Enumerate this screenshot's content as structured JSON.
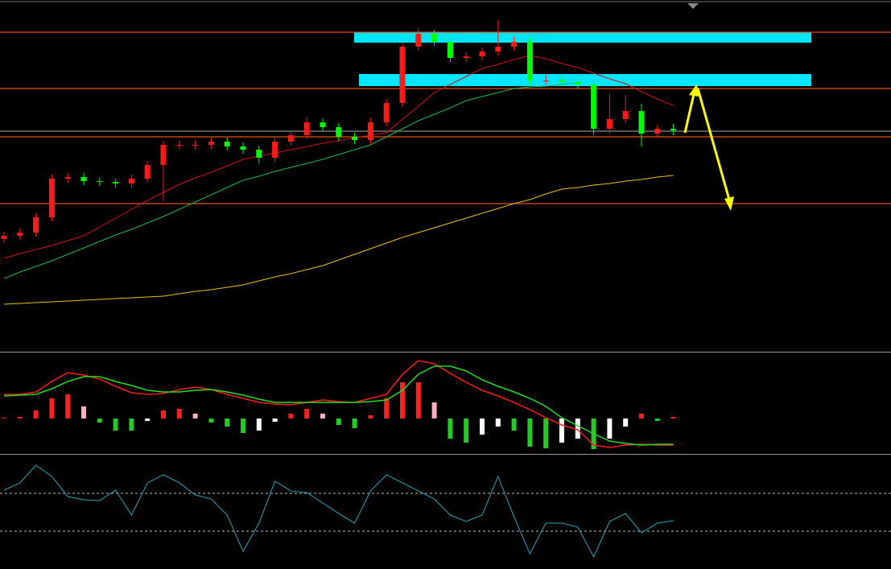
{
  "chart_data": [
    {
      "type": "candlestick",
      "ylim": [
        100,
        143.7
      ],
      "up_color": "#ff1a1a",
      "down_color": "#00ff00",
      "open": [
        114.0,
        114.4,
        114.8,
        116.7,
        121.5,
        121.7,
        121.2,
        121.1,
        120.9,
        121.5,
        123.2,
        125.7,
        125.7,
        125.7,
        126.1,
        125.5,
        125.1,
        124.1,
        126.1,
        126.9,
        128.5,
        127.9,
        126.7,
        126.3,
        128.5,
        130.9,
        137.9,
        139.5,
        138.5,
        136.5,
        136.7,
        137.3,
        137.9,
        138.5,
        133.7,
        133.7,
        133.5,
        133.2,
        127.7,
        128.9,
        129.9,
        127.1,
        127.7
      ],
      "high": [
        114.9,
        115.3,
        117.2,
        122.0,
        122.2,
        122.2,
        121.6,
        121.4,
        122.0,
        123.7,
        126.2,
        126.2,
        126.2,
        126.6,
        126.6,
        126.0,
        125.6,
        126.6,
        127.4,
        129.2,
        129.0,
        128.4,
        127.2,
        129.0,
        131.4,
        138.4,
        140.2,
        140.0,
        139.0,
        137.2,
        137.8,
        141.2,
        139.2,
        139.0,
        134.4,
        134.2,
        134.0,
        133.7,
        132.0,
        131.9,
        130.8,
        128.2,
        128.3
      ],
      "low": [
        113.5,
        113.9,
        114.3,
        116.2,
        121.0,
        120.7,
        120.6,
        120.4,
        120.4,
        121.0,
        118.7,
        125.2,
        125.2,
        125.2,
        125.0,
        124.6,
        123.4,
        123.6,
        125.6,
        126.4,
        127.4,
        126.2,
        125.8,
        125.8,
        128.0,
        130.4,
        137.4,
        138.0,
        136.0,
        136.0,
        136.2,
        136.8,
        137.4,
        133.2,
        133.2,
        133.0,
        132.7,
        127.0,
        127.2,
        128.4,
        125.5,
        126.6,
        126.9
      ],
      "close": [
        114.4,
        114.8,
        116.7,
        121.5,
        121.7,
        121.2,
        121.1,
        120.9,
        121.5,
        123.2,
        125.7,
        125.7,
        125.7,
        126.1,
        125.5,
        125.1,
        124.1,
        126.1,
        126.9,
        128.5,
        127.9,
        126.7,
        126.3,
        128.5,
        130.9,
        137.9,
        139.5,
        138.5,
        136.5,
        136.7,
        137.3,
        137.9,
        138.5,
        133.7,
        133.7,
        133.5,
        133.2,
        127.7,
        128.9,
        129.9,
        127.1,
        127.7,
        127.5
      ],
      "overlays": [
        {
          "color": "#d01010",
          "values": [
            111.6,
            112.2,
            112.7,
            113.2,
            113.8,
            114.4,
            115.5,
            116.6,
            117.7,
            118.8,
            119.8,
            120.8,
            121.6,
            122.3,
            123.1,
            123.9,
            124.3,
            124.7,
            125.1,
            125.5,
            125.9,
            126.2,
            126.6,
            126.9,
            127.2,
            128.9,
            130.5,
            132.2,
            133.2,
            134.2,
            135.2,
            135.7,
            136.3,
            136.8,
            136.4,
            135.8,
            135.3,
            134.6,
            133.9,
            133.3,
            132.3,
            131.4,
            130.6
          ]
        },
        {
          "color": "#1fb84a",
          "values": [
            109.1,
            109.9,
            110.6,
            111.3,
            112.1,
            112.9,
            113.7,
            114.5,
            115.2,
            116.0,
            116.8,
            117.7,
            118.6,
            119.5,
            120.4,
            121.3,
            121.8,
            122.4,
            122.9,
            123.4,
            123.9,
            124.5,
            125.1,
            125.7,
            126.7,
            127.7,
            128.7,
            129.5,
            130.3,
            131.2,
            131.7,
            132.2,
            132.7,
            132.9,
            133.0,
            133.2,
            133.4,
            null,
            null,
            null,
            null,
            null,
            null
          ]
        },
        {
          "color": "#e8c020",
          "values": [
            105.9,
            106.0,
            106.1,
            106.2,
            106.3,
            106.4,
            106.5,
            106.6,
            106.7,
            106.8,
            106.9,
            107.2,
            107.5,
            107.7,
            108.0,
            108.3,
            108.8,
            109.3,
            109.7,
            110.2,
            110.7,
            111.4,
            112.1,
            112.8,
            113.5,
            114.2,
            114.8,
            115.4,
            116.0,
            116.6,
            117.2,
            117.8,
            118.4,
            118.9,
            119.6,
            120.2,
            120.4,
            120.7,
            120.9,
            121.2,
            121.4,
            121.7,
            121.9
          ]
        }
      ],
      "levels": [
        {
          "value": 139.7,
          "color": "#e0501a"
        },
        {
          "value": 132.7,
          "color": "#e0501a"
        },
        {
          "value": 127.4,
          "color": "#8a8a8a"
        },
        {
          "value": 126.7,
          "color": "#e0501a"
        },
        {
          "value": 118.4,
          "color": "#e0501a"
        }
      ],
      "zones": [
        {
          "from": 138.4,
          "to": 139.7,
          "color": "#00e5ff"
        },
        {
          "from": 133.0,
          "to": 134.5,
          "color": "#00e5ff"
        }
      ]
    },
    {
      "type": "macd",
      "ylim": [
        -4.3,
        8.0
      ],
      "histogram": [
        0.1,
        0.2,
        1.0,
        2.5,
        3.0,
        1.5,
        -0.5,
        -1.5,
        -1.5,
        -0.3,
        1.0,
        1.2,
        0.6,
        -0.5,
        -1.0,
        -1.8,
        -1.5,
        -0.4,
        0.6,
        1.2,
        0.6,
        -0.8,
        -1.2,
        0.4,
        2.5,
        4.5,
        4.5,
        2.0,
        -2.5,
        -3.0,
        -2.0,
        -1.0,
        -1.5,
        -3.5,
        -3.7,
        -3.0,
        -2.5,
        -3.8,
        -2.5,
        -1.0,
        0.6,
        -0.3,
        0.2
      ],
      "series": [
        {
          "color": "#ff1a1a",
          "values": [
            3.0,
            3.0,
            3.3,
            4.6,
            5.7,
            5.4,
            4.9,
            4.0,
            3.2,
            3.0,
            3.1,
            3.6,
            3.9,
            3.6,
            3.0,
            2.5,
            2.0,
            1.8,
            1.7,
            2.0,
            2.3,
            2.1,
            2.0,
            2.5,
            3.0,
            5.5,
            7.2,
            6.8,
            5.6,
            4.5,
            3.5,
            2.8,
            2.0,
            1.1,
            0.1,
            -0.8,
            -1.4,
            -3.3,
            -3.6,
            -3.3,
            -3.2,
            -3.3,
            -3.3
          ]
        },
        {
          "color": "#22dd22",
          "values": [
            2.8,
            2.9,
            3.0,
            3.7,
            4.6,
            5.2,
            5.2,
            4.6,
            4.1,
            3.5,
            3.3,
            3.3,
            3.5,
            3.6,
            3.3,
            2.9,
            2.4,
            2.0,
            2.0,
            2.0,
            2.0,
            2.0,
            2.0,
            2.1,
            2.3,
            3.5,
            5.5,
            6.5,
            6.5,
            5.9,
            4.8,
            4.0,
            3.3,
            2.5,
            1.5,
            0.1,
            -0.9,
            -1.9,
            -2.8,
            -3.1,
            -3.3,
            -3.2,
            -3.2
          ]
        }
      ]
    },
    {
      "type": "line",
      "ylim": [
        -10,
        110
      ],
      "color": "#2aa6b8",
      "levels": [
        70,
        30
      ],
      "values": [
        73.4,
        81.1,
        99.8,
        87.9,
        66.6,
        63.2,
        62.3,
        73.4,
        47.0,
        81.1,
        89.6,
        81.1,
        68.3,
        64.0,
        47.0,
        8.7,
        38.5,
        82.8,
        72.5,
        70.8,
        59.8,
        48.7,
        38.5,
        72.5,
        89.6,
        81.1,
        72.5,
        64.0,
        47.0,
        40.2,
        47.0,
        87.9,
        45.3,
        6.2,
        38.5,
        38.5,
        34.3,
        2.8,
        40.2,
        48.7,
        28.3,
        38.5,
        41.1
      ]
    }
  ]
}
